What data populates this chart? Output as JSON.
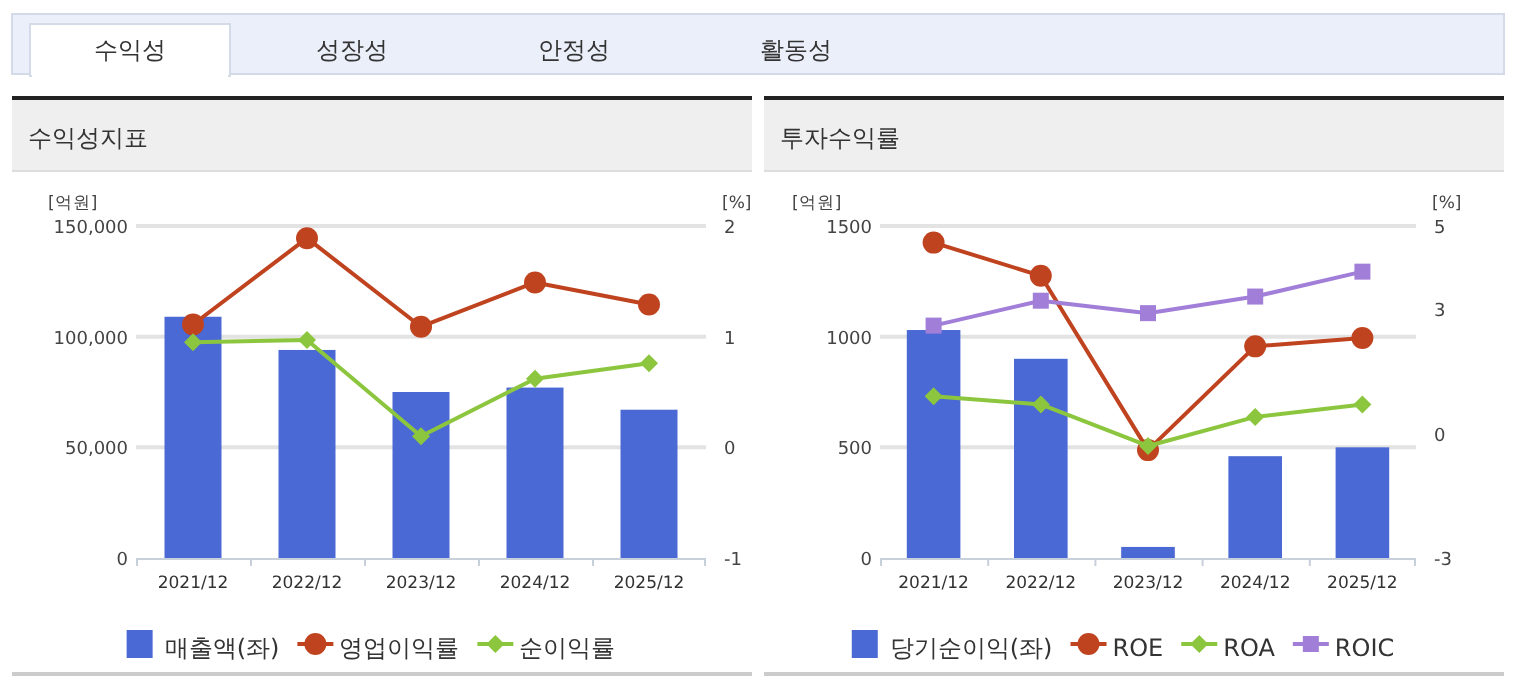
{
  "chart_data": [
    {
      "type": "bar",
      "title": "수익성지표",
      "ylabel": "[억원]",
      "y2label": "[%]",
      "annotations": [
        "수익성",
        "성장성",
        "안정성",
        "활동성"
      ],
      "categories": [
        "2021/12",
        "2022/12",
        "2023/12",
        "2024/12",
        "2025/12"
      ],
      "ylim": [
        0,
        150000
      ],
      "yticks": [
        {
          "value": 0,
          "label": "0"
        },
        {
          "value": 50000,
          "label": "50,000"
        },
        {
          "value": 100000,
          "label": "100,000"
        },
        {
          "value": 150000,
          "label": "150,000"
        }
      ],
      "y2lim": [
        -1,
        2
      ],
      "y2ticks": [
        -1,
        0,
        1,
        2
      ],
      "grid": "y",
      "legend": "bottom",
      "series": [
        {
          "name": "매출액(좌)",
          "type": "bar",
          "color": "#4a69d4",
          "values": [
            109000,
            94000,
            75000,
            77000,
            67000
          ]
        },
        {
          "name": "영업이익률",
          "type": "line",
          "axis": "y2",
          "marker": "circle",
          "color": "#c0431f",
          "values": [
            1.11,
            1.89,
            1.09,
            1.49,
            1.29
          ]
        },
        {
          "name": "순이익률",
          "type": "line",
          "axis": "y2",
          "marker": "diamond",
          "color": "#8cc63e",
          "values": [
            0.95,
            0.97,
            0.1,
            0.62,
            0.76
          ]
        }
      ]
    },
    {
      "type": "bar",
      "title": "투자수익률",
      "ylabel": "[억원]",
      "y2label": "[%]",
      "categories": [
        "2021/12",
        "2022/12",
        "2023/12",
        "2024/12",
        "2025/12"
      ],
      "ylim": [
        0,
        1500
      ],
      "yticks": [
        0,
        500,
        1000,
        1500
      ],
      "y2lim": [
        -3,
        5
      ],
      "y2ticks": [
        -3,
        0,
        3,
        5
      ],
      "grid": "y",
      "legend": "bottom",
      "series": [
        {
          "name": "당기순이익(좌)",
          "type": "bar",
          "color": "#4a69d4",
          "values": [
            1030,
            900,
            50,
            460,
            500
          ]
        },
        {
          "name": "ROE",
          "type": "line",
          "axis": "y2",
          "marker": "circle",
          "color": "#c0431f",
          "values": [
            4.6,
            3.8,
            -0.4,
            2.1,
            2.3
          ]
        },
        {
          "name": "ROA",
          "type": "line",
          "axis": "y2",
          "marker": "diamond",
          "color": "#8cc63e",
          "values": [
            0.9,
            0.7,
            -0.3,
            0.4,
            0.7
          ]
        },
        {
          "name": "ROIC",
          "type": "line",
          "axis": "y2",
          "marker": "square",
          "color": "#a17fd9",
          "values": [
            2.6,
            3.2,
            2.9,
            3.3,
            3.9
          ]
        }
      ]
    }
  ]
}
